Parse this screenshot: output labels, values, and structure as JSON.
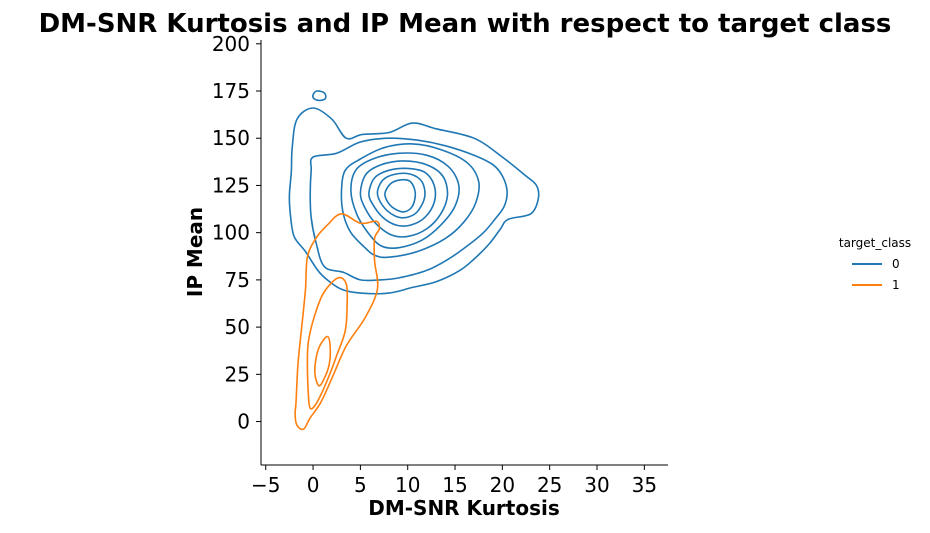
{
  "chart_data": {
    "type": "kde-contour",
    "title": "DM-SNR Kurtosis and IP Mean with respect to target class",
    "xlabel": "DM-SNR Kurtosis",
    "ylabel": "IP Mean",
    "xlim": [
      -5.5,
      37.5
    ],
    "ylim": [
      -23,
      202
    ],
    "xticks": [
      -5,
      0,
      5,
      10,
      15,
      20,
      25,
      30,
      35
    ],
    "yticks": [
      0,
      25,
      50,
      75,
      100,
      125,
      150,
      175,
      200
    ],
    "xtick_labels": [
      "−5",
      "0",
      "5",
      "10",
      "15",
      "20",
      "25",
      "30",
      "35"
    ],
    "ytick_labels": [
      "0",
      "25",
      "50",
      "75",
      "100",
      "125",
      "150",
      "175",
      "200"
    ],
    "grid": false,
    "legend": {
      "title": "target_class",
      "placement": "center-right, outside plot",
      "entries": [
        {
          "label": "0",
          "color": "#1f77b4"
        },
        {
          "label": "1",
          "color": "#ff7f0e"
        }
      ]
    },
    "series": [
      {
        "name": "0",
        "color": "#1f77b4",
        "contours": [
          [
            [
              -2.5,
              120
            ],
            [
              -2.3,
              132
            ],
            [
              -2.2,
              145
            ],
            [
              -1.7,
              160
            ],
            [
              0,
              166
            ],
            [
              2,
              160
            ],
            [
              3.5,
              150
            ],
            [
              5.2,
              152
            ],
            [
              8,
              153
            ],
            [
              10.5,
              158
            ],
            [
              13,
              155
            ],
            [
              17,
              150
            ],
            [
              20,
              140
            ],
            [
              22.5,
              130
            ],
            [
              23.6,
              125
            ],
            [
              23.8,
              118
            ],
            [
              23,
              110
            ],
            [
              20.6,
              107
            ],
            [
              19.8,
              102
            ],
            [
              18.6,
              94
            ],
            [
              17,
              86
            ],
            [
              15.5,
              80
            ],
            [
              13,
              74
            ],
            [
              10.5,
              71
            ],
            [
              8,
              68
            ],
            [
              5,
              68
            ],
            [
              3,
              70
            ],
            [
              1.5,
              75
            ],
            [
              0.5,
              80
            ],
            [
              -0.8,
              90
            ],
            [
              -2,
              98
            ],
            [
              -2.4,
              110
            ],
            [
              -2.5,
              120
            ]
          ],
          [
            [
              -0.3,
              120
            ],
            [
              -0.2,
              133
            ],
            [
              0,
              140
            ],
            [
              2.5,
              142
            ],
            [
              5,
              148
            ],
            [
              8,
              150
            ],
            [
              11,
              149
            ],
            [
              14,
              146
            ],
            [
              17,
              141
            ],
            [
              19,
              136
            ],
            [
              20,
              130
            ],
            [
              20.5,
              122
            ],
            [
              20.2,
              114
            ],
            [
              19.2,
              107
            ],
            [
              18,
              100
            ],
            [
              16.3,
              93
            ],
            [
              14.3,
              86
            ],
            [
              12,
              80
            ],
            [
              9,
              76
            ],
            [
              7,
              75
            ],
            [
              5,
              75
            ],
            [
              3.2,
              79
            ],
            [
              1.2,
              82
            ],
            [
              0.3,
              95
            ],
            [
              -0.2,
              108
            ],
            [
              -0.3,
              120
            ]
          ],
          [
            [
              3,
              122
            ],
            [
              3.4,
              133
            ],
            [
              5,
              139
            ],
            [
              7.5,
              145
            ],
            [
              10.5,
              147
            ],
            [
              13.5,
              144
            ],
            [
              16.3,
              137
            ],
            [
              17.5,
              127
            ],
            [
              17.2,
              116
            ],
            [
              16,
              106
            ],
            [
              14,
              97
            ],
            [
              11,
              90
            ],
            [
              8,
              87
            ],
            [
              6.5,
              88
            ],
            [
              5.5,
              92
            ],
            [
              4,
              100
            ],
            [
              3.2,
              110
            ],
            [
              3,
              122
            ]
          ],
          [
            [
              4,
              122
            ],
            [
              4.5,
              133
            ],
            [
              6.3,
              139
            ],
            [
              9,
              142
            ],
            [
              12,
              141
            ],
            [
              14.3,
              135
            ],
            [
              15.4,
              125
            ],
            [
              15,
              114
            ],
            [
              13.5,
              104
            ],
            [
              11.5,
              96
            ],
            [
              9,
              92
            ],
            [
              7.2,
              93
            ],
            [
              5.8,
              100
            ],
            [
              4.6,
              110
            ],
            [
              4,
              122
            ]
          ],
          [
            [
              5,
              121
            ],
            [
              5.6,
              131
            ],
            [
              7.2,
              136
            ],
            [
              9.5,
              138
            ],
            [
              12,
              136
            ],
            [
              13.7,
              130
            ],
            [
              14.2,
              120
            ],
            [
              13.5,
              110
            ],
            [
              12,
              102
            ],
            [
              10,
              98
            ],
            [
              8.2,
              99
            ],
            [
              6.6,
              105
            ],
            [
              5.5,
              113
            ],
            [
              5,
              121
            ]
          ],
          [
            [
              5.9,
              121
            ],
            [
              6.5,
              129
            ],
            [
              8,
              133
            ],
            [
              10,
              134
            ],
            [
              11.8,
              132
            ],
            [
              12.8,
              125
            ],
            [
              12.8,
              116
            ],
            [
              11.8,
              108
            ],
            [
              10.3,
              104
            ],
            [
              8.8,
              104
            ],
            [
              7.4,
              108
            ],
            [
              6.3,
              115
            ],
            [
              5.9,
              121
            ]
          ],
          [
            [
              6.8,
              121
            ],
            [
              7.4,
              128
            ],
            [
              8.7,
              131
            ],
            [
              10.3,
              131
            ],
            [
              11.5,
              127
            ],
            [
              11.8,
              119
            ],
            [
              11,
              111
            ],
            [
              9.8,
              108
            ],
            [
              8.6,
              109
            ],
            [
              7.4,
              114
            ],
            [
              6.8,
              121
            ]
          ],
          [
            [
              7.6,
              121
            ],
            [
              8.2,
              126
            ],
            [
              9.3,
              128
            ],
            [
              10.3,
              127
            ],
            [
              10.8,
              121
            ],
            [
              10.5,
              114
            ],
            [
              9.6,
              111
            ],
            [
              8.5,
              113
            ],
            [
              7.8,
              117
            ],
            [
              7.6,
              121
            ]
          ],
          [
            [
              0,
              173
            ],
            [
              0.4,
              175
            ],
            [
              1.2,
              174
            ],
            [
              1.3,
              171
            ],
            [
              0.7,
              170
            ],
            [
              0.1,
              171
            ],
            [
              0,
              173
            ]
          ]
        ]
      },
      {
        "name": "1",
        "color": "#ff7f0e",
        "contours": [
          [
            [
              -1.8,
              10
            ],
            [
              -1.6,
              30
            ],
            [
              -1.2,
              50
            ],
            [
              -0.8,
              70
            ],
            [
              -0.6,
              87
            ],
            [
              0.3,
              97
            ],
            [
              1.5,
              104
            ],
            [
              3,
              110
            ],
            [
              5,
              105
            ],
            [
              6.7,
              106
            ],
            [
              7,
              102
            ],
            [
              6.5,
              97
            ],
            [
              6.5,
              85
            ],
            [
              6.8,
              70
            ],
            [
              5.5,
              55
            ],
            [
              3.5,
              40
            ],
            [
              2,
              23
            ],
            [
              0.8,
              10
            ],
            [
              -0.3,
              2
            ],
            [
              -1,
              -4
            ],
            [
              -1.7,
              -2
            ],
            [
              -1.9,
              4
            ],
            [
              -1.8,
              10
            ]
          ],
          [
            [
              -0.5,
              15
            ],
            [
              -0.6,
              30
            ],
            [
              -0.5,
              42
            ],
            [
              0.1,
              55
            ],
            [
              1.1,
              68
            ],
            [
              2.6,
              76
            ],
            [
              3.5,
              73
            ],
            [
              3.6,
              62
            ],
            [
              3.4,
              48
            ],
            [
              2.5,
              35
            ],
            [
              1.6,
              23
            ],
            [
              0.4,
              10
            ],
            [
              -0.3,
              7
            ],
            [
              -0.5,
              15
            ]
          ],
          [
            [
              0.2,
              25
            ],
            [
              0.3,
              33
            ],
            [
              0.7,
              40
            ],
            [
              1.5,
              45
            ],
            [
              1.8,
              40
            ],
            [
              1.7,
              30
            ],
            [
              1.1,
              22
            ],
            [
              0.6,
              19
            ],
            [
              0.2,
              25
            ]
          ]
        ]
      }
    ]
  }
}
